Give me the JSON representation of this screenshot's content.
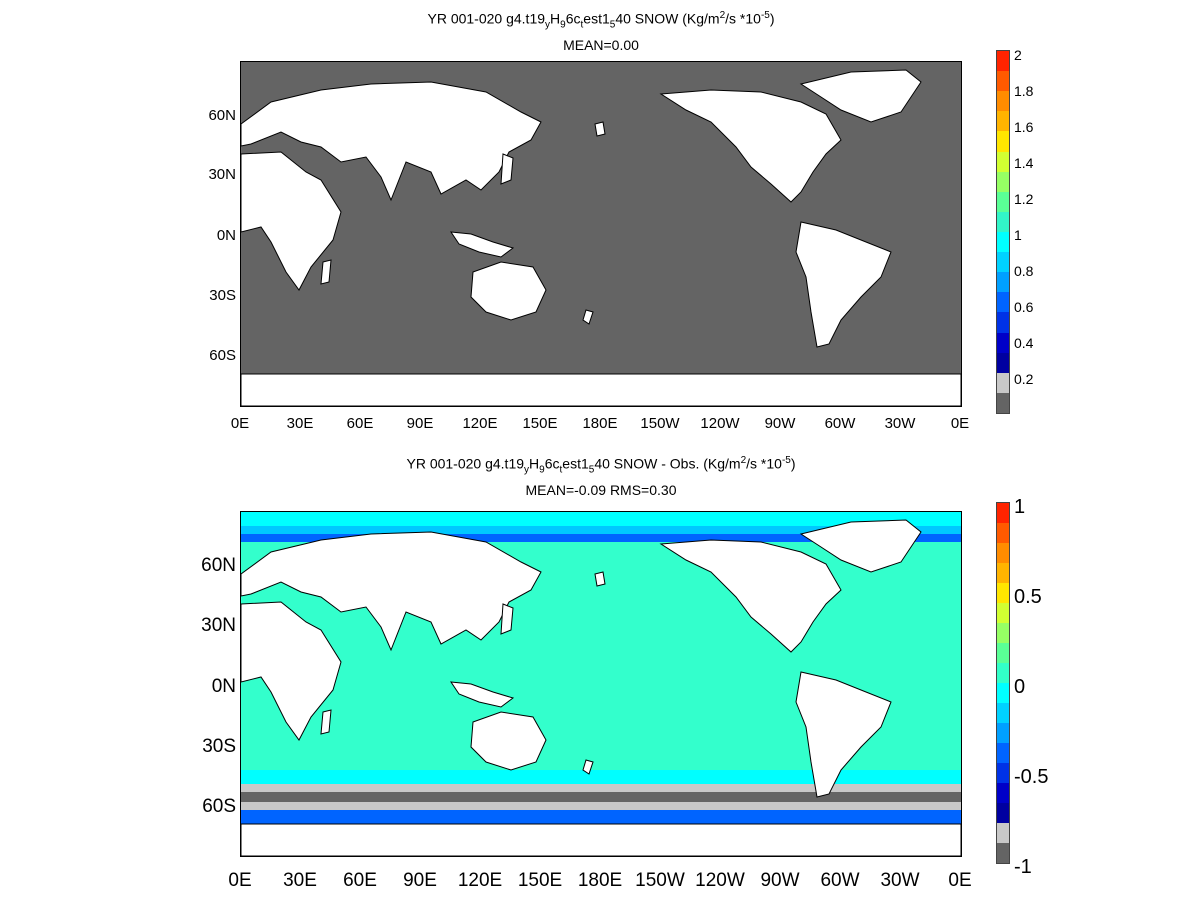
{
  "panel1": {
    "title_parts": {
      "pre": "YR 001-020 g4.t19",
      "sub1": "y",
      "mid1": "H",
      "sub2": "9",
      "mid2": "6c",
      "sub3": "t",
      "mid3": "est1",
      "sub4": "5",
      "mid4": "40 SNOW (Kg/m",
      "sup1": "2",
      "mid5": "/s   *10",
      "sup2": "-5",
      "post": ")"
    },
    "subtitle": "MEAN=0.00",
    "lat_labels": [
      "60N",
      "30N",
      "0N",
      "30S",
      "60S"
    ],
    "lon_labels": [
      "0E",
      "30E",
      "60E",
      "90E",
      "120E",
      "150E",
      "180E",
      "150W",
      "120W",
      "90W",
      "60W",
      "30W",
      "0E"
    ],
    "colorbar_labels": [
      "2",
      "1.8",
      "1.6",
      "1.4",
      "1.2",
      "1",
      "0.8",
      "0.6",
      "0.4",
      "0.2"
    ],
    "colorbar_colors": [
      "#ff2400",
      "#ff5a00",
      "#ff8c00",
      "#ffb400",
      "#ffe600",
      "#d2ff32",
      "#96ff64",
      "#5aff96",
      "#32f5c8",
      "#00ffff",
      "#00d2ff",
      "#00a0ff",
      "#0064ff",
      "#0032e6",
      "#0000c8",
      "#0000a0",
      "#c8c8c8",
      "#646464"
    ],
    "ocean_color": "#646464",
    "land_color": "#ffffff"
  },
  "panel2": {
    "title_parts": {
      "pre": "YR 001-020 g4.t19",
      "sub1": "y",
      "mid1": "H",
      "sub2": "9",
      "mid2": "6c",
      "sub3": "t",
      "mid3": "est1",
      "sub4": "5",
      "mid4": "40 SNOW - Obs. (Kg/m",
      "sup1": "2",
      "mid5": "/s *10",
      "sup2": "-5",
      "post": ")"
    },
    "subtitle": "MEAN=-0.09   RMS=0.30",
    "lat_labels": [
      "60N",
      "30N",
      "0N",
      "30S",
      "60S"
    ],
    "lon_labels": [
      "0E",
      "30E",
      "60E",
      "90E",
      "120E",
      "150E",
      "180E",
      "150W",
      "120W",
      "90W",
      "60W",
      "30W",
      "0E"
    ],
    "colorbar_labels": [
      "1",
      "0.5",
      "0",
      "-0.5",
      "-1"
    ],
    "colorbar_colors": [
      "#ff2400",
      "#ff5a00",
      "#ff8c00",
      "#ffb400",
      "#ffe600",
      "#d2ff32",
      "#96ff64",
      "#5aff96",
      "#32ffc8",
      "#00ffff",
      "#00d2ff",
      "#00a0ff",
      "#0064ff",
      "#0032e6",
      "#0000c8",
      "#0000a0",
      "#c8c8c8",
      "#646464"
    ],
    "ocean_color": "#33ffcc",
    "land_color": "#ffffff"
  }
}
